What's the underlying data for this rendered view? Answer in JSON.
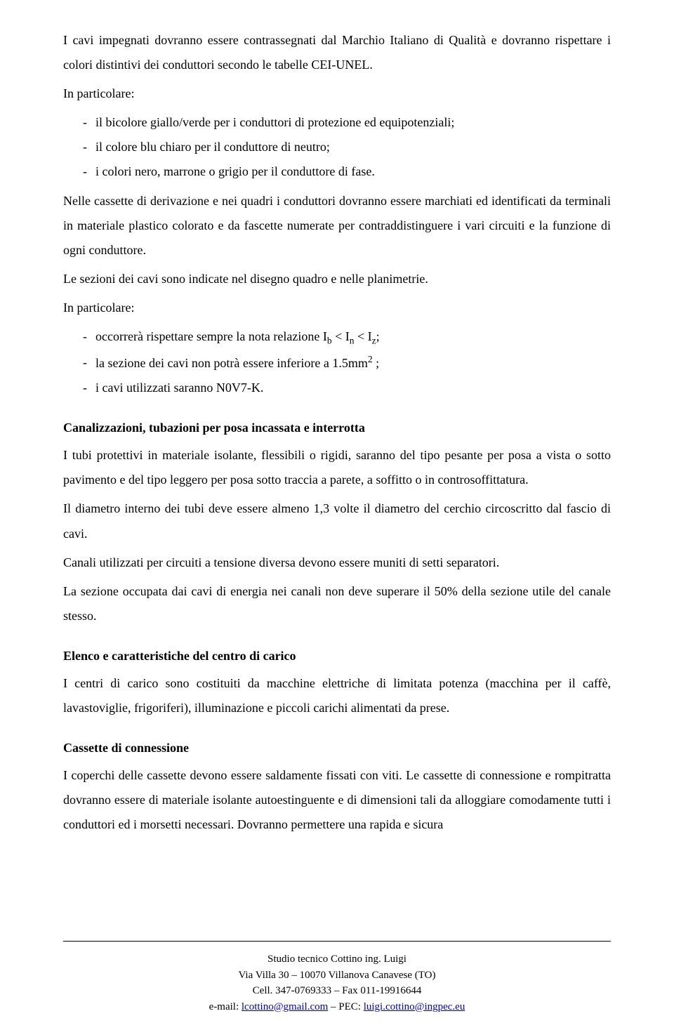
{
  "intro1": "I cavi impegnati dovranno essere contrassegnati dal Marchio Italiano di Qualità e dovranno rispettare i colori distintivi dei conduttori secondo le tabelle CEI-UNEL.",
  "intro2": "In particolare:",
  "list1": {
    "i0": "il bicolore giallo/verde per i conduttori di protezione ed equipotenziali;",
    "i1": "il colore blu chiaro per il conduttore di neutro;",
    "i2": "i colori nero, marrone o grigio per il conduttore di fase."
  },
  "p1": "Nelle cassette di derivazione e nei quadri i conduttori dovranno essere marchiati ed identificati da terminali in materiale plastico colorato e da fascette numerate per contraddistinguere i vari circuiti e la funzione di ogni conduttore.",
  "p2": "Le sezioni dei cavi sono indicate nel disegno quadro e nelle planimetrie.",
  "p3": "In particolare:",
  "list2": {
    "i0_pre": "occorrerà rispettare sempre la nota relazione I",
    "i0_sub1": "b",
    "i0_mid1": " < I",
    "i0_sub2": "n",
    "i0_mid2": " < I",
    "i0_sub3": "z",
    "i0_post": ";",
    "i1_pre": "la sezione dei cavi non potrà essere inferiore a 1.5mm",
    "i1_sup": "2",
    "i1_post": " ;",
    "i2": "i cavi utilizzati saranno N0V7-K."
  },
  "sec1": {
    "title": "Canalizzazioni, tubazioni per posa incassata e interrotta",
    "p0": "I tubi protettivi in materiale isolante, flessibili o rigidi, saranno del tipo pesante per posa a vista o sotto pavimento e del tipo leggero per posa sotto traccia a parete, a soffitto o in controsoffittatura.",
    "p1": "Il diametro interno dei tubi deve essere almeno 1,3 volte il diametro del cerchio circoscritto dal fascio di cavi.",
    "p2": "Canali utilizzati per circuiti a tensione diversa devono essere muniti di setti separatori.",
    "p3": "La sezione occupata dai cavi di energia nei canali non deve superare il 50% della sezione utile del canale stesso."
  },
  "sec2": {
    "title": "Elenco e caratteristiche del centro di carico",
    "p0": "I centri di carico sono costituiti da macchine elettriche di limitata potenza (macchina per il caffè, lavastoviglie, frigoriferi), illuminazione e piccoli carichi alimentati da prese."
  },
  "sec3": {
    "title": "Cassette di connessione",
    "p0": "I coperchi delle cassette devono essere saldamente fissati con viti. Le cassette di connessione e rompitratta dovranno essere di materiale isolante autoestinguente e di dimensioni tali da alloggiare comodamente tutti i conduttori ed i morsetti necessari. Dovranno permettere una rapida e sicura"
  },
  "footer": {
    "l0": "Studio tecnico Cottino ing. Luigi",
    "l1": "Via Villa 30 – 10070 Villanova Canavese (TO)",
    "l2": "Cell. 347-0769333 – Fax 011-19916644",
    "l3_pre": "e-mail: ",
    "l3_link1": "lcottino@gmail.com",
    "l3_mid": " – PEC: ",
    "l3_link2": "luigi.cottino@ingpec.eu"
  }
}
